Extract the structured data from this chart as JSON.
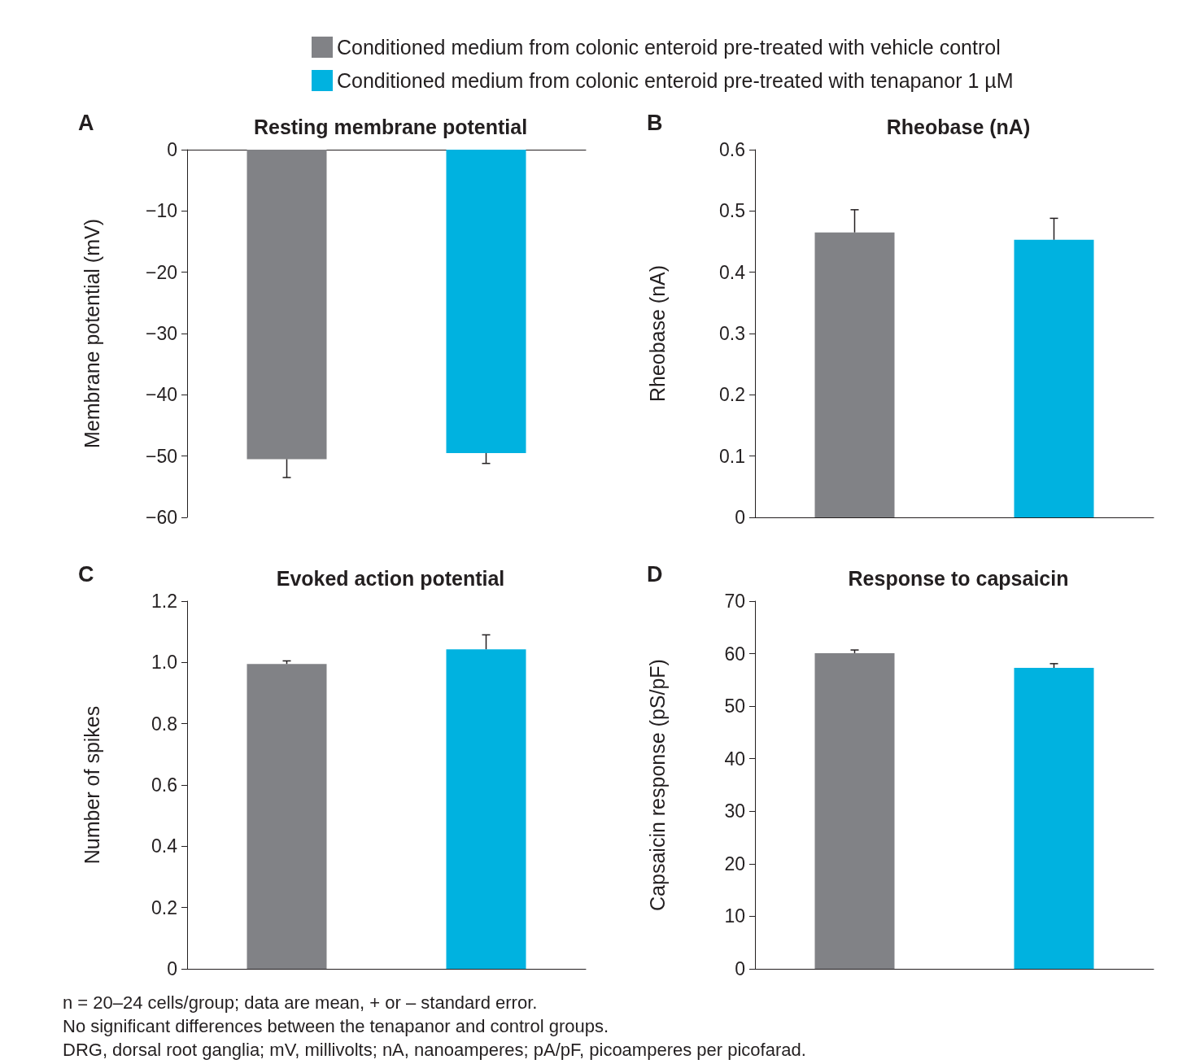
{
  "chart_data": [
    {
      "type": "bar",
      "title": "Resting membrane potential",
      "ylabel": "Membrane potential (mV)",
      "categories": [
        null,
        null
      ],
      "legend": "top",
      "annotations": [
        "A"
      ],
      "series": [
        {
          "name": "Conditioned medium from colonic enteroid pre-treated with vehicle control",
          "color": "#818286",
          "values": [
            -50.5,
            null
          ],
          "errors": [
            [
              -53.5,
              -50.5
            ],
            null
          ]
        },
        {
          "name": "Conditioned medium from colonic enteroid pre-treated with tenapanor 1 µM",
          "color": "#00b2e0",
          "values": [
            null,
            -49.5
          ],
          "errors": [
            null,
            [
              -51.2,
              -49.5
            ]
          ]
        }
      ],
      "ylim": [
        -60,
        0
      ],
      "yticks": [
        0,
        {
          "value": -10,
          "label": "−10"
        },
        {
          "value": -20,
          "label": "−20"
        },
        {
          "value": -30,
          "label": "−30"
        },
        {
          "value": -40,
          "label": "−40"
        },
        {
          "value": -50,
          "label": "−50"
        },
        {
          "value": -60,
          "label": "−60"
        }
      ],
      "grid": false,
      "tick_labels": "y"
    },
    {
      "type": "bar",
      "title": "Rheobase (nA)",
      "ylabel": "Rheobase (nA)",
      "categories": [
        null,
        null
      ],
      "annotations": [
        "B"
      ],
      "series": [
        {
          "color": "#818286",
          "values": [
            0.465,
            null
          ],
          "errors": [
            [
              0.465,
              0.502
            ],
            null
          ]
        },
        {
          "color": "#00b2e0",
          "values": [
            null,
            0.453
          ],
          "errors": [
            null,
            [
              0.453,
              0.488
            ]
          ]
        }
      ],
      "ylim": [
        0,
        0.6
      ],
      "yticks": [
        0,
        {
          "value": 0.1,
          "label": "0.1"
        },
        {
          "value": 0.2,
          "label": "0.2"
        },
        {
          "value": 0.3,
          "label": "0.3"
        },
        {
          "value": 0.4,
          "label": "0.4"
        },
        {
          "value": 0.5,
          "label": "0.5"
        },
        {
          "value": 0.6,
          "label": "0.6"
        }
      ],
      "grid": false,
      "tick_labels": "y"
    },
    {
      "type": "bar",
      "title": "Evoked action potential",
      "ylabel": "Number of spikes",
      "categories": [
        null,
        null
      ],
      "annotations": [
        "C"
      ],
      "series": [
        {
          "color": "#818286",
          "values": [
            0.995,
            null
          ],
          "errors": [
            [
              0.995,
              1.005
            ],
            null
          ]
        },
        {
          "color": "#00b2e0",
          "values": [
            null,
            1.043
          ],
          "errors": [
            null,
            [
              1.043,
              1.09
            ]
          ]
        }
      ],
      "ylim": [
        0,
        1.2
      ],
      "yticks": [
        0,
        {
          "value": 0.2,
          "label": "0.2"
        },
        {
          "value": 0.4,
          "label": "0.4"
        },
        {
          "value": 0.6,
          "label": "0.6"
        },
        {
          "value": 0.8,
          "label": "0.8"
        },
        {
          "value": 1,
          "label": "1.0"
        },
        {
          "value": 1.2,
          "label": "1.2"
        }
      ],
      "grid": false,
      "tick_labels": "y"
    },
    {
      "type": "bar",
      "title": "Response to capsaicin",
      "ylabel": "Capsaicin response (pS/pF)",
      "categories": [
        null,
        null
      ],
      "annotations": [
        "D",
        "n = 20–24 cells/group; data are mean, + or – standard error.",
        "No significant differences between the tenapanor and control groups.",
        "DRG, dorsal root ganglia; mV, millivolts; nA, nanoamperes; pA/pF, picoamperes per picofarad."
      ],
      "series": [
        {
          "color": "#818286",
          "values": [
            60.1,
            null
          ],
          "errors": [
            [
              60.1,
              60.7
            ],
            null
          ]
        },
        {
          "color": "#00b2e0",
          "values": [
            null,
            57.3
          ],
          "errors": [
            null,
            [
              57.3,
              58.1
            ]
          ]
        }
      ],
      "ylim": [
        0,
        70
      ],
      "yticks": [
        0,
        10,
        20,
        30,
        40,
        50,
        60,
        70
      ],
      "grid": false,
      "tick_labels": "y"
    }
  ]
}
